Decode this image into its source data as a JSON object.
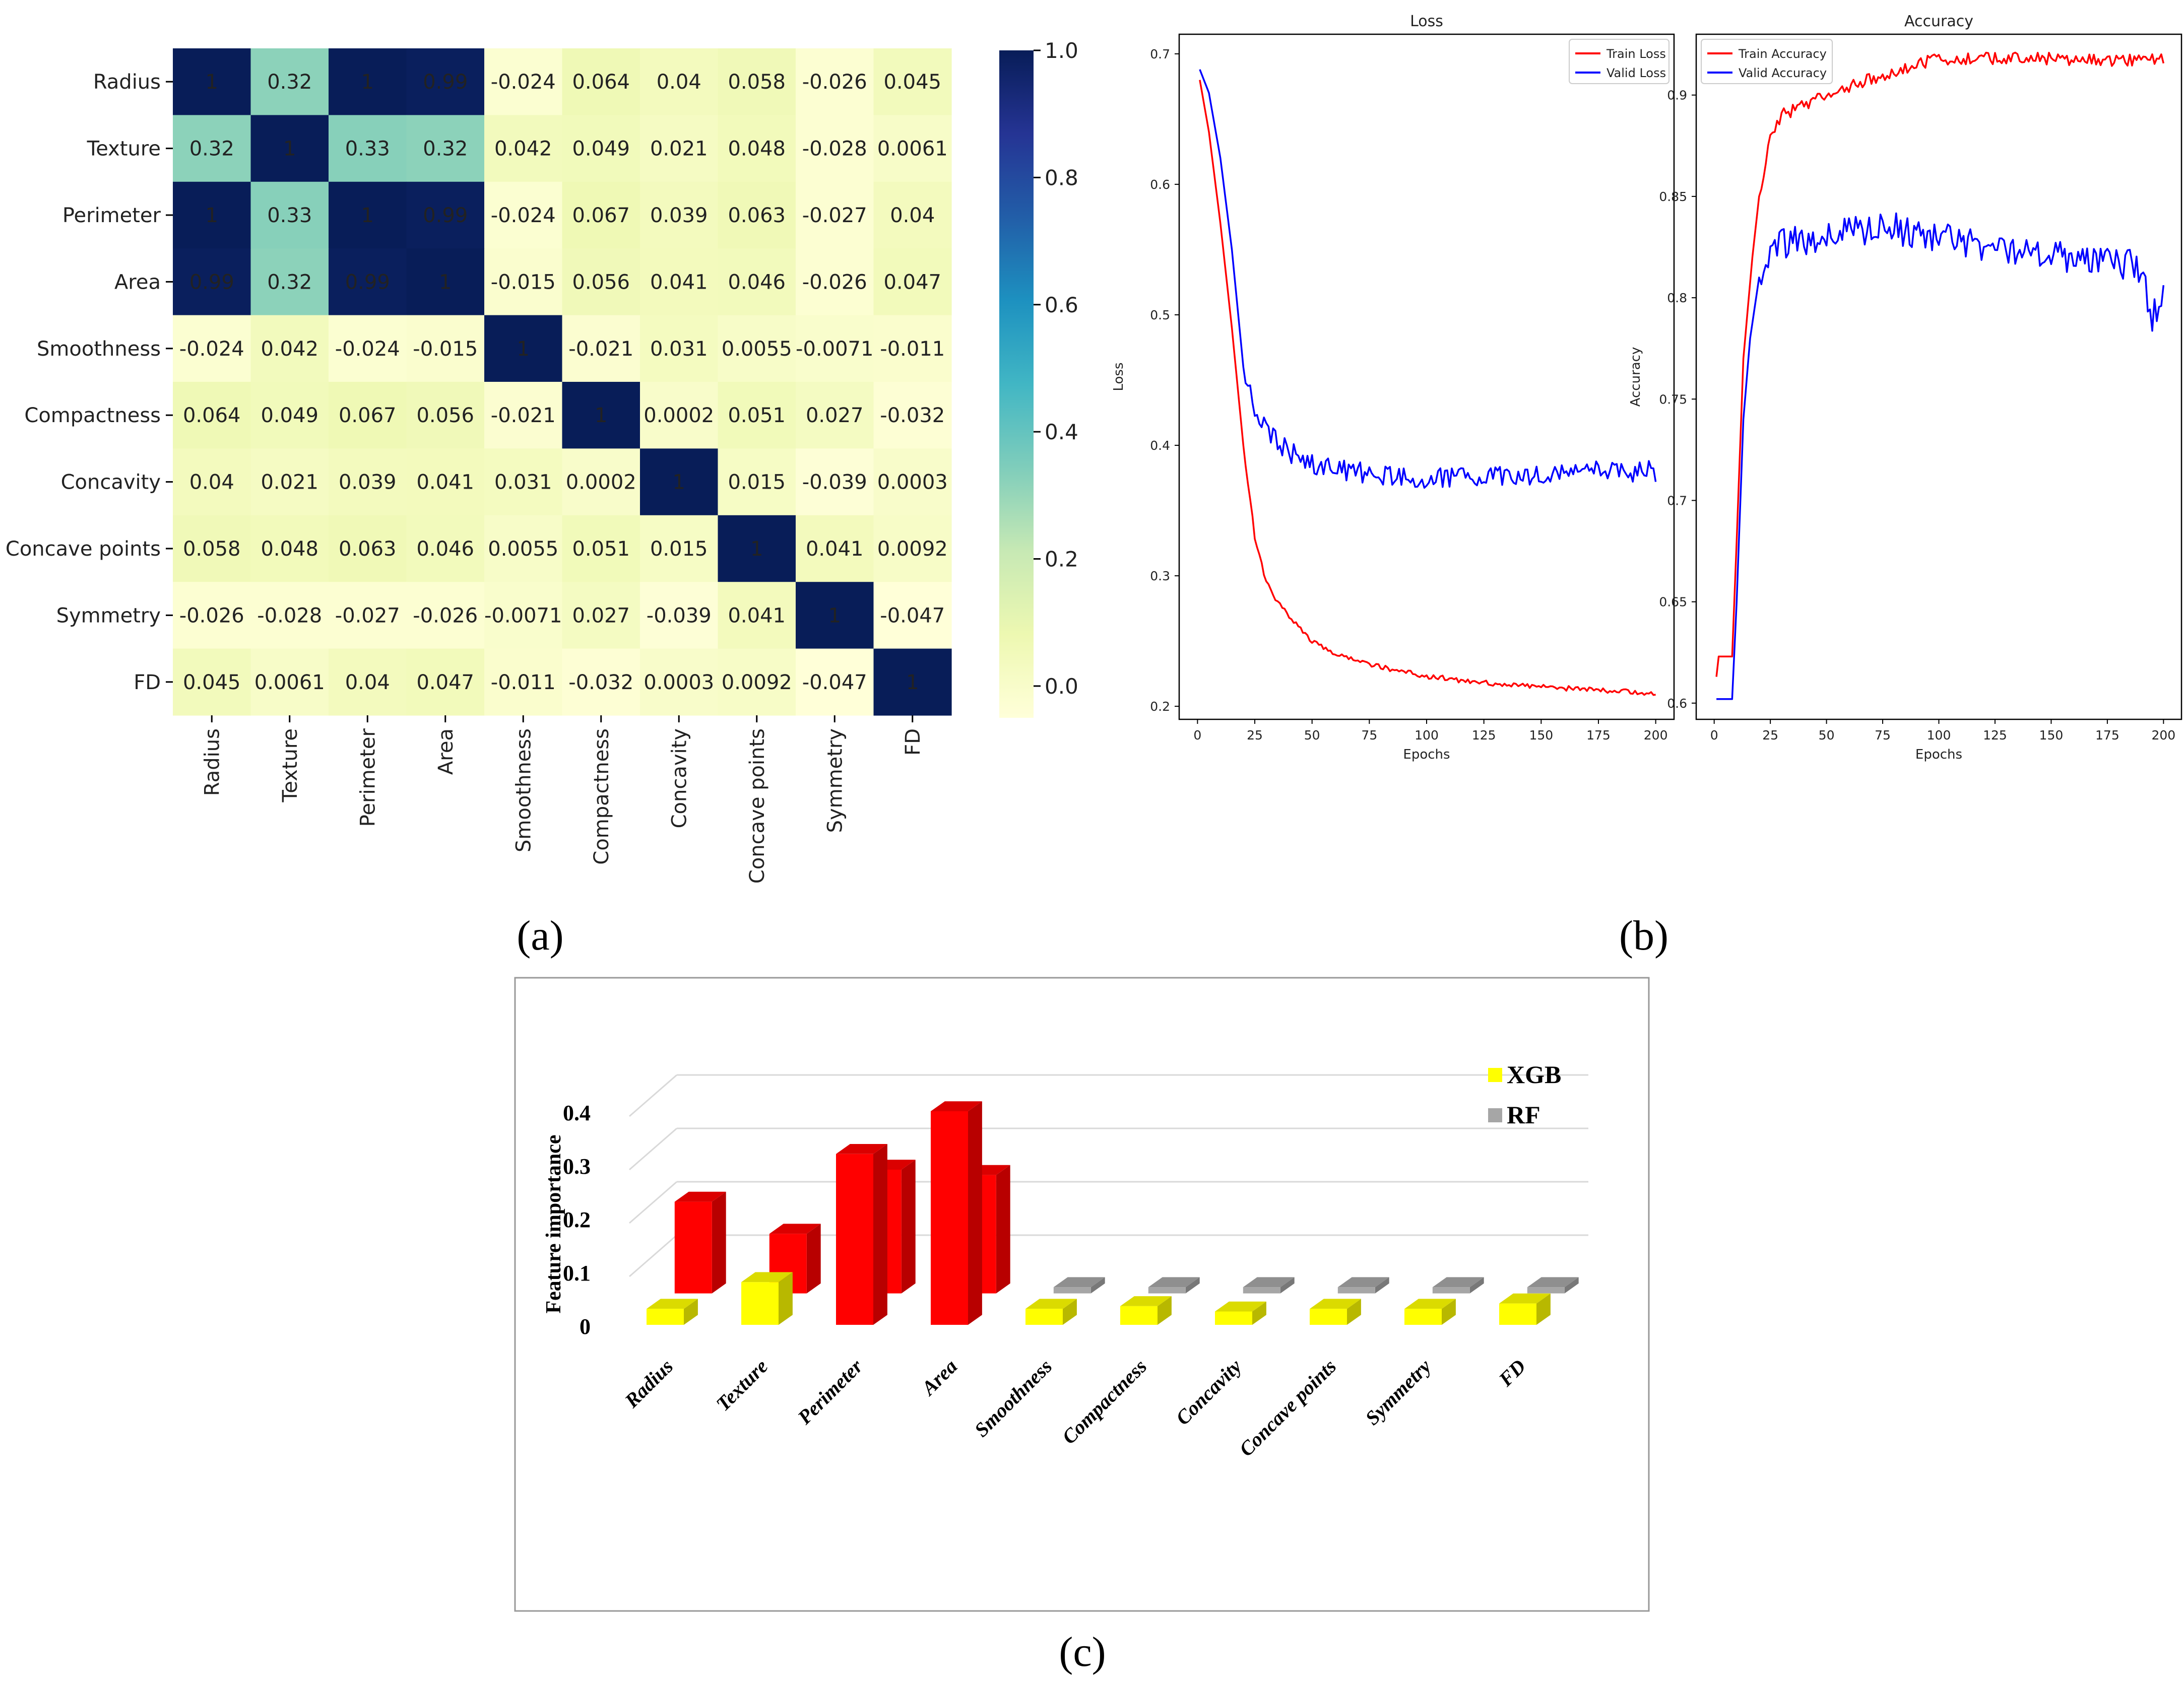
{
  "panel_labels": {
    "a": "(a)",
    "b": "(b)",
    "c": "(c)"
  },
  "chart_data": [
    {
      "type": "heatmap",
      "rows": [
        "Radius",
        "Texture",
        "Perimeter",
        "Area",
        "Smoothness",
        "Compactness",
        "Concavity",
        "Concave points",
        "Symmetry",
        "FD"
      ],
      "cols": [
        "Radius",
        "Texture",
        "Perimeter",
        "Area",
        "Smoothness",
        "Compactness",
        "Concavity",
        "Concave points",
        "Symmetry",
        "FD"
      ],
      "values": [
        [
          1,
          0.32,
          1,
          0.99,
          -0.024,
          0.064,
          0.04,
          0.058,
          -0.026,
          0.045
        ],
        [
          0.32,
          1,
          0.33,
          0.32,
          0.042,
          0.049,
          0.021,
          0.048,
          -0.028,
          0.0061
        ],
        [
          1,
          0.33,
          1,
          0.99,
          -0.024,
          0.067,
          0.039,
          0.063,
          -0.027,
          0.04
        ],
        [
          0.99,
          0.32,
          0.99,
          1,
          -0.015,
          0.056,
          0.041,
          0.046,
          -0.026,
          0.047
        ],
        [
          -0.024,
          0.042,
          -0.024,
          -0.015,
          1,
          -0.021,
          0.031,
          0.0055,
          -0.0071,
          -0.011
        ],
        [
          0.064,
          0.049,
          0.067,
          0.056,
          -0.021,
          1,
          0.0002,
          0.051,
          0.027,
          -0.032
        ],
        [
          0.04,
          0.021,
          0.039,
          0.041,
          0.031,
          0.0002,
          1,
          0.015,
          -0.039,
          0.0003
        ],
        [
          0.058,
          0.048,
          0.063,
          0.046,
          0.0055,
          0.051,
          0.015,
          1,
          0.041,
          0.0092
        ],
        [
          -0.026,
          -0.028,
          -0.027,
          -0.026,
          -0.0071,
          0.027,
          -0.039,
          0.041,
          1,
          -0.047
        ],
        [
          0.045,
          0.0061,
          0.04,
          0.047,
          -0.011,
          -0.032,
          0.0003,
          0.0092,
          -0.047,
          1
        ]
      ],
      "labels": [
        [
          "1",
          "0.32",
          "1",
          "0.99",
          "-0.024",
          "0.064",
          "0.04",
          "0.058",
          "-0.026",
          "0.045"
        ],
        [
          "0.32",
          "1",
          "0.33",
          "0.32",
          "0.042",
          "0.049",
          "0.021",
          "0.048",
          "-0.028",
          "0.0061"
        ],
        [
          "1",
          "0.33",
          "1",
          "0.99",
          "-0.024",
          "0.067",
          "0.039",
          "0.063",
          "-0.027",
          "0.04"
        ],
        [
          "0.99",
          "0.32",
          "0.99",
          "1",
          "-0.015",
          "0.056",
          "0.041",
          "0.046",
          "-0.026",
          "0.047"
        ],
        [
          "-0.024",
          "0.042",
          "-0.024",
          "-0.015",
          "1",
          "-0.021",
          "0.031",
          "0.0055",
          "-0.0071",
          "-0.011"
        ],
        [
          "0.064",
          "0.049",
          "0.067",
          "0.056",
          "-0.021",
          "1",
          "0.0002",
          "0.051",
          "0.027",
          "-0.032"
        ],
        [
          "0.04",
          "0.021",
          "0.039",
          "0.041",
          "0.031",
          "0.0002",
          "1",
          "0.015",
          "-0.039",
          "0.0003"
        ],
        [
          "0.058",
          "0.048",
          "0.063",
          "0.046",
          "0.0055",
          "0.051",
          "0.015",
          "1",
          "0.041",
          "0.0092"
        ],
        [
          "-0.026",
          "-0.028",
          "-0.027",
          "-0.026",
          "-0.0071",
          "0.027",
          "-0.039",
          "0.041",
          "1",
          "-0.047"
        ],
        [
          "0.045",
          "0.0061",
          "0.04",
          "0.047",
          "-0.011",
          "-0.032",
          "0.0003",
          "0.0092",
          "-0.047",
          "1"
        ]
      ],
      "colorbar": {
        "range": [
          -0.05,
          1.0
        ],
        "ticks": [
          "0.0",
          "0.2",
          "0.4",
          "0.6",
          "0.8",
          "1.0"
        ],
        "tick_values": [
          0,
          0.2,
          0.4,
          0.6,
          0.8,
          1.0
        ],
        "colormap": "YlGnBu"
      }
    },
    {
      "type": "line",
      "title": "Loss",
      "xlabel": "Epochs",
      "ylabel": "Loss",
      "xlim": [
        -8,
        208
      ],
      "ylim": [
        0.19,
        0.715
      ],
      "xticks": [
        0,
        25,
        50,
        75,
        100,
        125,
        150,
        175,
        200
      ],
      "yticks": [
        0.2,
        0.3,
        0.4,
        0.5,
        0.6,
        0.7
      ],
      "legend": "top-right",
      "series": [
        {
          "name": "Train Loss",
          "color": "#ff0000",
          "knots": [
            [
              1,
              0.68
            ],
            [
              5,
              0.64
            ],
            [
              10,
              0.57
            ],
            [
              15,
              0.49
            ],
            [
              20,
              0.4
            ],
            [
              25,
              0.33
            ],
            [
              30,
              0.295
            ],
            [
              35,
              0.28
            ],
            [
              40,
              0.268
            ],
            [
              50,
              0.25
            ],
            [
              60,
              0.24
            ],
            [
              75,
              0.232
            ],
            [
              100,
              0.223
            ],
            [
              125,
              0.218
            ],
            [
              150,
              0.215
            ],
            [
              175,
              0.212
            ],
            [
              200,
              0.21
            ]
          ],
          "noise": 0.002
        },
        {
          "name": "Valid Loss",
          "color": "#0000ff",
          "knots": [
            [
              1,
              0.688
            ],
            [
              5,
              0.67
            ],
            [
              10,
              0.62
            ],
            [
              15,
              0.55
            ],
            [
              20,
              0.46
            ],
            [
              25,
              0.43
            ],
            [
              30,
              0.41
            ],
            [
              40,
              0.395
            ],
            [
              50,
              0.385
            ],
            [
              75,
              0.378
            ],
            [
              100,
              0.375
            ],
            [
              125,
              0.377
            ],
            [
              150,
              0.378
            ],
            [
              175,
              0.38
            ],
            [
              200,
              0.38
            ]
          ],
          "noise": 0.008
        }
      ]
    },
    {
      "type": "line",
      "title": "Accuracy",
      "xlabel": "Epochs",
      "ylabel": "Accuracy",
      "xlim": [
        -8,
        208
      ],
      "ylim": [
        0.592,
        0.93
      ],
      "xticks": [
        0,
        25,
        50,
        75,
        100,
        125,
        150,
        175,
        200
      ],
      "yticks": [
        0.6,
        0.65,
        0.7,
        0.75,
        0.8,
        0.85,
        0.9
      ],
      "legend": "top-left",
      "series": [
        {
          "name": "Train Accuracy",
          "color": "#ff0000",
          "knots": [
            [
              1,
              0.613
            ],
            [
              2,
              0.623
            ],
            [
              8,
              0.623
            ],
            [
              10,
              0.68
            ],
            [
              13,
              0.77
            ],
            [
              17,
              0.82
            ],
            [
              20,
              0.85
            ],
            [
              25,
              0.88
            ],
            [
              30,
              0.89
            ],
            [
              50,
              0.9
            ],
            [
              75,
              0.91
            ],
            [
              100,
              0.918
            ],
            [
              125,
              0.918
            ],
            [
              150,
              0.918
            ],
            [
              175,
              0.917
            ],
            [
              200,
              0.918
            ]
          ],
          "noise": 0.003
        },
        {
          "name": "Valid Accuracy",
          "color": "#0000ff",
          "knots": [
            [
              1,
              0.602
            ],
            [
              8,
              0.602
            ],
            [
              10,
              0.65
            ],
            [
              13,
              0.74
            ],
            [
              16,
              0.78
            ],
            [
              20,
              0.81
            ],
            [
              25,
              0.825
            ],
            [
              50,
              0.83
            ],
            [
              75,
              0.835
            ],
            [
              100,
              0.83
            ],
            [
              125,
              0.825
            ],
            [
              150,
              0.82
            ],
            [
              175,
              0.818
            ],
            [
              190,
              0.815
            ],
            [
              195,
              0.79
            ],
            [
              200,
              0.8
            ]
          ],
          "noise": 0.008
        }
      ]
    },
    {
      "type": "bar",
      "ylabel": "Feature importance",
      "categories": [
        "Radius",
        "Texture",
        "Perimeter",
        "Area",
        "Smoothness",
        "Compactness",
        "Concavity",
        "Concave points",
        "Symmetry",
        "FD"
      ],
      "yticks": [
        "0",
        "0.1",
        "0.2",
        "0.3",
        "0.4"
      ],
      "ylim": [
        0,
        0.4
      ],
      "legend": "top-right",
      "series": [
        {
          "name": "XGB",
          "color": "#ffff00",
          "values": [
            0.03,
            0.08,
            0.32,
            0.4,
            0.03,
            0.035,
            0.025,
            0.03,
            0.03,
            0.04
          ]
        },
        {
          "name": "RF",
          "color": "#a6a6a6",
          "values": [
            0.2,
            0.14,
            0.26,
            0.25,
            0.04,
            0.04,
            0.04,
            0.04,
            0.04,
            0.04
          ]
        }
      ]
    }
  ]
}
